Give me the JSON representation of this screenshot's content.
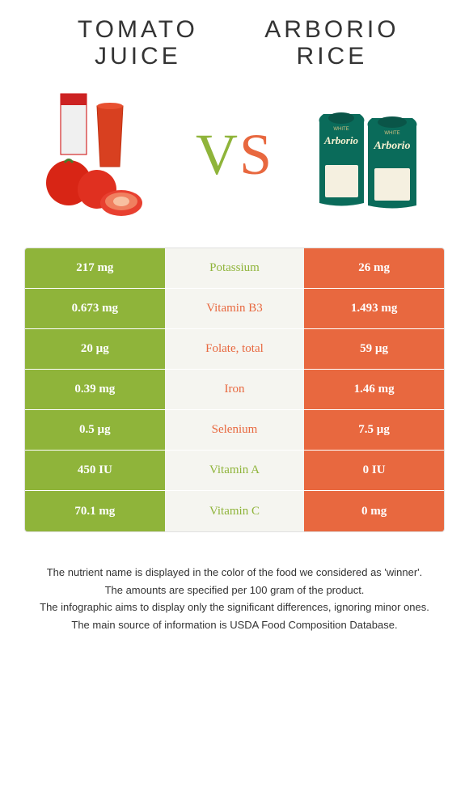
{
  "colors": {
    "left": "#8fb43a",
    "right": "#e8683f",
    "midBg": "#f5f5f0",
    "leftWinnerText": "#8fb43a",
    "rightWinnerText": "#e8683f",
    "border": "#e0e0e0",
    "textDark": "#333333"
  },
  "typography": {
    "titleFontSize": 30,
    "titleLetterSpacing": 4,
    "vsFontSize": 72,
    "cellFontSize": 15,
    "footnoteFontSize": 13
  },
  "header": {
    "leftTitle": "Tomato juice",
    "rightTitle": "Arborio rice",
    "vs": "VS"
  },
  "table": {
    "rows": [
      {
        "nutrient": "Potassium",
        "left": "217 mg",
        "right": "26 mg",
        "winner": "left"
      },
      {
        "nutrient": "Vitamin B3",
        "left": "0.673 mg",
        "right": "1.493 mg",
        "winner": "right"
      },
      {
        "nutrient": "Folate, total",
        "left": "20 µg",
        "right": "59 µg",
        "winner": "right"
      },
      {
        "nutrient": "Iron",
        "left": "0.39 mg",
        "right": "1.46 mg",
        "winner": "right"
      },
      {
        "nutrient": "Selenium",
        "left": "0.5 µg",
        "right": "7.5 µg",
        "winner": "right"
      },
      {
        "nutrient": "Vitamin A",
        "left": "450 IU",
        "right": "0 IU",
        "winner": "left"
      },
      {
        "nutrient": "Vitamin C",
        "left": "70.1 mg",
        "right": "0 mg",
        "winner": "left"
      }
    ]
  },
  "footnotes": [
    "The nutrient name is displayed in the color of the food we considered as 'winner'.",
    "The amounts are specified per 100 gram of the product.",
    "The infographic aims to display only the significant differences, ignoring minor ones.",
    "The main source of information is USDA Food Composition Database."
  ]
}
